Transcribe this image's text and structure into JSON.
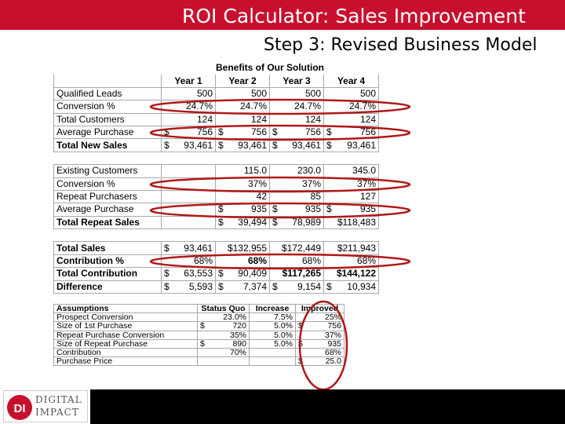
{
  "title": "ROI Calculator: Sales Improvement",
  "subtitle": "Step 3: Revised Business Model",
  "benefits_table": {
    "title": "Benefits of Our Solution",
    "years": [
      "Year 1",
      "Year 2",
      "Year 3",
      "Year 4"
    ],
    "rows": {
      "qualified_leads": {
        "label": "Qualified Leads",
        "values": [
          "500",
          "500",
          "500",
          "500"
        ]
      },
      "conversion_new": {
        "label": "Conversion %",
        "values": [
          "24.7%",
          "24.7%",
          "24.7%",
          "24.7%"
        ]
      },
      "total_customers": {
        "label": "Total Customers",
        "values": [
          "124",
          "124",
          "124",
          "124"
        ]
      },
      "avg_purchase_new": {
        "label": "Average Purchase",
        "values": [
          "756",
          "756",
          "756",
          "756"
        ]
      },
      "total_new_sales": {
        "label": "Total New Sales",
        "values": [
          "93,461",
          "93,461",
          "93,461",
          "93,461"
        ]
      },
      "existing_customers": {
        "label": "Existing Customers",
        "values": [
          "",
          "115.0",
          "230.0",
          "345.0"
        ]
      },
      "conversion_repeat": {
        "label": "Conversion %",
        "values": [
          "",
          "37%",
          "37%",
          "37%"
        ]
      },
      "repeat_purchasers": {
        "label": "Repeat Purchasers",
        "values": [
          "",
          "42",
          "85",
          "127"
        ]
      },
      "avg_purchase_repeat": {
        "label": "Average Purchase",
        "values": [
          "",
          "935",
          "935",
          "935"
        ]
      },
      "total_repeat_sales": {
        "label": "Total Repeat Sales",
        "values": [
          "",
          "39,494",
          "78,989",
          "$118,483"
        ]
      },
      "total_sales": {
        "label": "Total Sales",
        "values": [
          "93,461",
          "$132,955",
          "$172,449",
          "$211,943"
        ]
      },
      "contribution_pct": {
        "label": "Contribution %",
        "values": [
          "68%",
          "68%",
          "68%",
          "68%"
        ]
      },
      "total_contribution": {
        "label": "Total Contribution",
        "values": [
          "63,553",
          "90,409",
          "$117,265",
          "$144,122"
        ]
      },
      "difference": {
        "label": "Difference",
        "values": [
          "5,593",
          "7,374",
          "9,154",
          "10,934"
        ]
      }
    }
  },
  "assumptions_table": {
    "headers": [
      "Assumptions",
      "Status Quo",
      "Increase",
      "Improved"
    ],
    "rows": [
      {
        "label": "Prospect Conversion",
        "status_quo": "23.0%",
        "increase": "7.5%",
        "improved": "25%"
      },
      {
        "label": "Size of 1st Purchase",
        "status_quo": "720",
        "increase": "5.0%",
        "improved": "756"
      },
      {
        "label": "Repeat Purchase Conversion",
        "status_quo": "35%",
        "increase": "5.0%",
        "improved": "37%"
      },
      {
        "label": "Size of Repeat Purchase",
        "status_quo": "890",
        "increase": "5.0%",
        "improved": "935"
      },
      {
        "label": "Contribution",
        "status_quo": "70%",
        "increase": "",
        "improved": "68%"
      },
      {
        "label": "Purchase Price",
        "status_quo": "",
        "increase": "",
        "improved": "25.0"
      }
    ]
  },
  "currency_symbol": "$",
  "logo": {
    "line1": "DIGITAL",
    "line2": "IMPACT",
    "mark": "DI"
  },
  "colors": {
    "title_bar": "#c8102e",
    "highlight_oval": "#b01818",
    "panel": "#000000"
  }
}
